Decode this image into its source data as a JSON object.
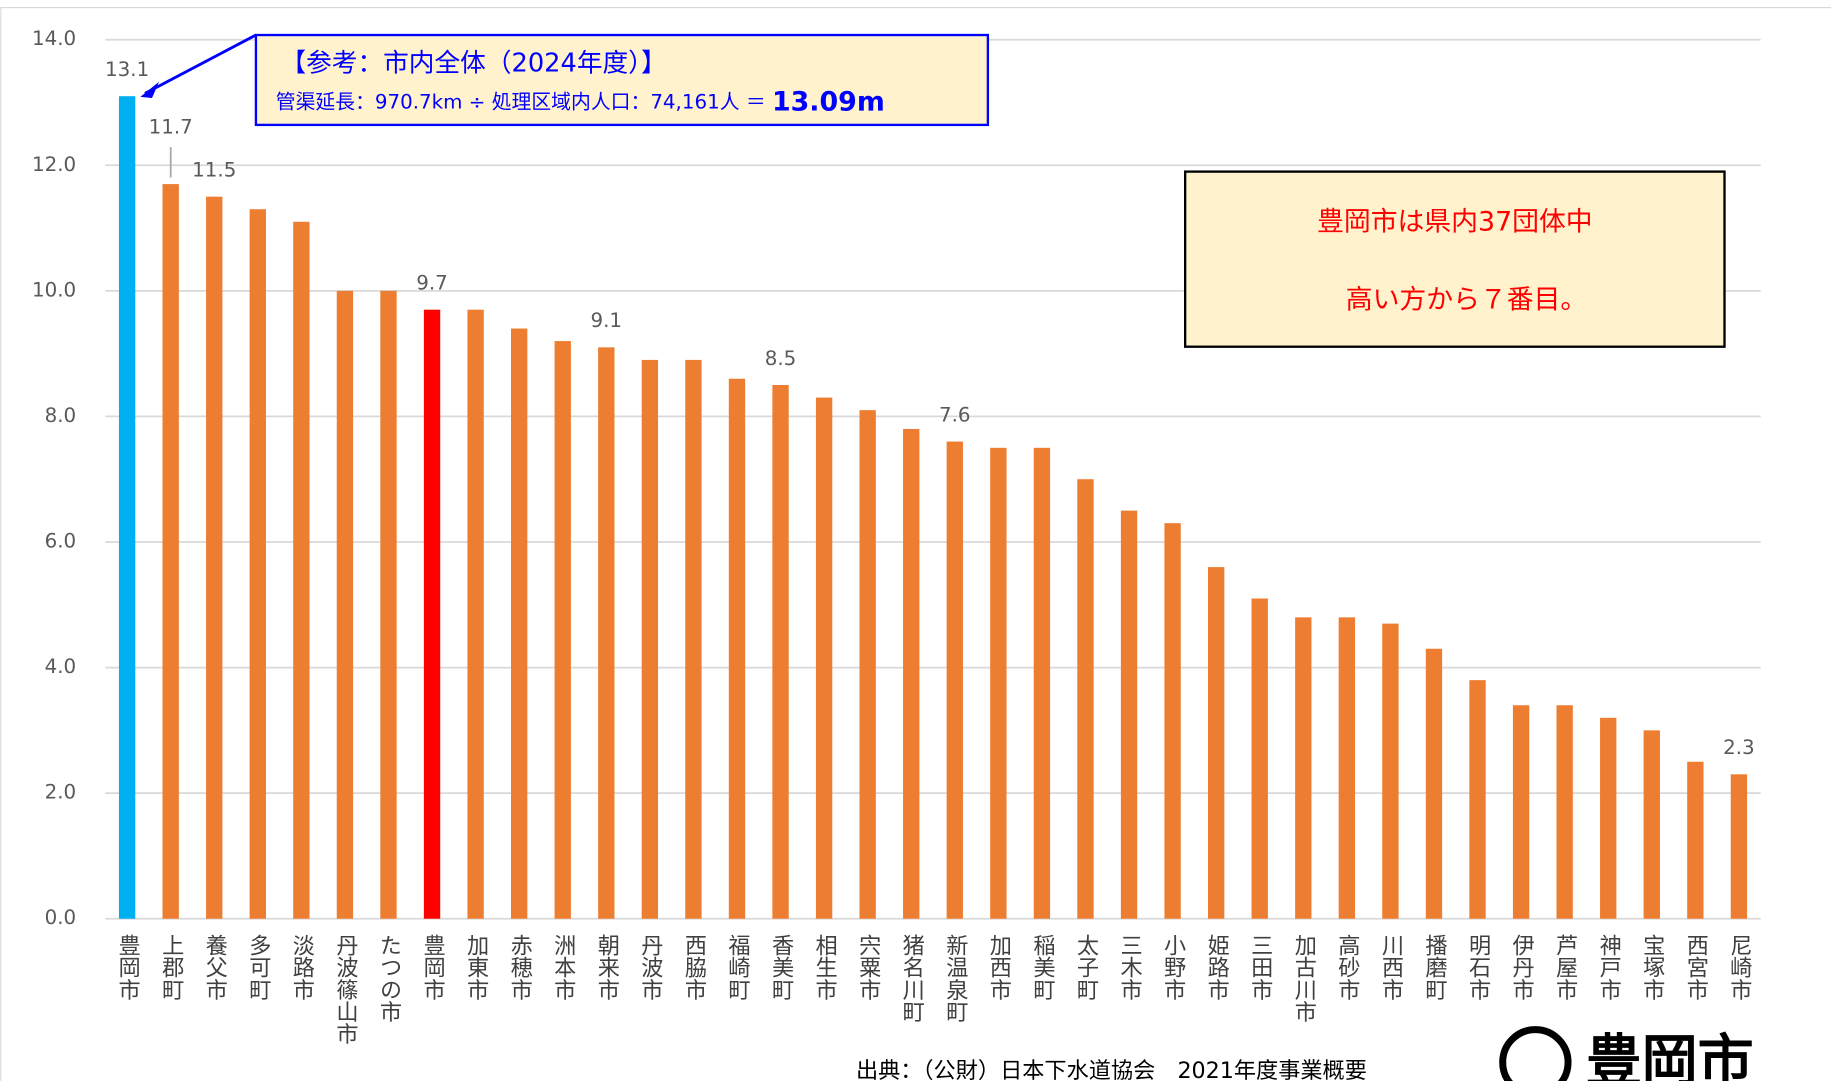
{
  "chart_data": {
    "type": "bar",
    "categories": [
      "豊岡市",
      "上郡町",
      "養父市",
      "多可町",
      "淡路市",
      "丹波篠山市",
      "たつの市",
      "豊岡市",
      "加東市",
      "赤穂市",
      "洲本市",
      "朝来市",
      "丹波市",
      "西脇市",
      "福崎町",
      "香美町",
      "相生市",
      "宍粟市",
      "猪名川町",
      "新温泉町",
      "加西市",
      "稲美町",
      "太子町",
      "三木市",
      "小野市",
      "姫路市",
      "三田市",
      "加古川市",
      "高砂市",
      "川西市",
      "播磨町",
      "明石市",
      "伊丹市",
      "芦屋市",
      "神戸市",
      "宝塚市",
      "西宮市",
      "尼崎市"
    ],
    "values": [
      13.1,
      11.7,
      11.5,
      11.3,
      11.1,
      10.0,
      10.0,
      9.7,
      9.7,
      9.4,
      9.2,
      9.1,
      8.9,
      8.9,
      8.6,
      8.5,
      8.3,
      8.1,
      7.8,
      7.6,
      7.5,
      7.5,
      7.0,
      6.5,
      6.3,
      5.6,
      5.1,
      4.8,
      4.8,
      4.7,
      4.3,
      3.8,
      3.4,
      3.4,
      3.2,
      3.0,
      2.5,
      2.3
    ],
    "value_labels": [
      "13.1",
      "11.7",
      "11.5",
      null,
      null,
      null,
      null,
      "9.7",
      null,
      null,
      null,
      "9.1",
      null,
      null,
      null,
      "8.5",
      null,
      null,
      null,
      "7.6",
      null,
      null,
      null,
      null,
      null,
      null,
      null,
      null,
      null,
      null,
      null,
      null,
      null,
      null,
      null,
      null,
      null,
      "2.3"
    ],
    "colors": [
      "#00b0f0",
      "#ed7d31",
      "#ed7d31",
      "#ed7d31",
      "#ed7d31",
      "#ed7d31",
      "#ed7d31",
      "#ff0000",
      "#ed7d31",
      "#ed7d31",
      "#ed7d31",
      "#ed7d31",
      "#ed7d31",
      "#ed7d31",
      "#ed7d31",
      "#ed7d31",
      "#ed7d31",
      "#ed7d31",
      "#ed7d31",
      "#ed7d31",
      "#ed7d31",
      "#ed7d31",
      "#ed7d31",
      "#ed7d31",
      "#ed7d31",
      "#ed7d31",
      "#ed7d31",
      "#ed7d31",
      "#ed7d31",
      "#ed7d31",
      "#ed7d31",
      "#ed7d31",
      "#ed7d31",
      "#ed7d31",
      "#ed7d31",
      "#ed7d31",
      "#ed7d31",
      "#ed7d31"
    ],
    "ylim": [
      0,
      14
    ],
    "yticks": [
      {
        "value": 0,
        "label": "0.0"
      },
      {
        "value": 2,
        "label": "2.0"
      },
      {
        "value": 4,
        "label": "4.0"
      },
      {
        "value": 6,
        "label": "6.0"
      },
      {
        "value": 8,
        "label": "8.0"
      },
      {
        "value": 10,
        "label": "10.0"
      },
      {
        "value": 12,
        "label": "12.0"
      },
      {
        "value": 14,
        "label": "14.0"
      }
    ],
    "grid": true,
    "annotations": {
      "reference_title": "【参考：市内全体（2024年度）】",
      "reference_formula": "管渠延長：970.7km ÷ 処理区域内人口：74,161人 ＝ ",
      "reference_result": "13.09m",
      "rank_line1": "豊岡市は県内37団体中",
      "rank_line2": "高い方から７番目。",
      "source": "出典：（公財）日本下水道協会　2021年度事業概要",
      "logo": "豊岡市"
    }
  }
}
